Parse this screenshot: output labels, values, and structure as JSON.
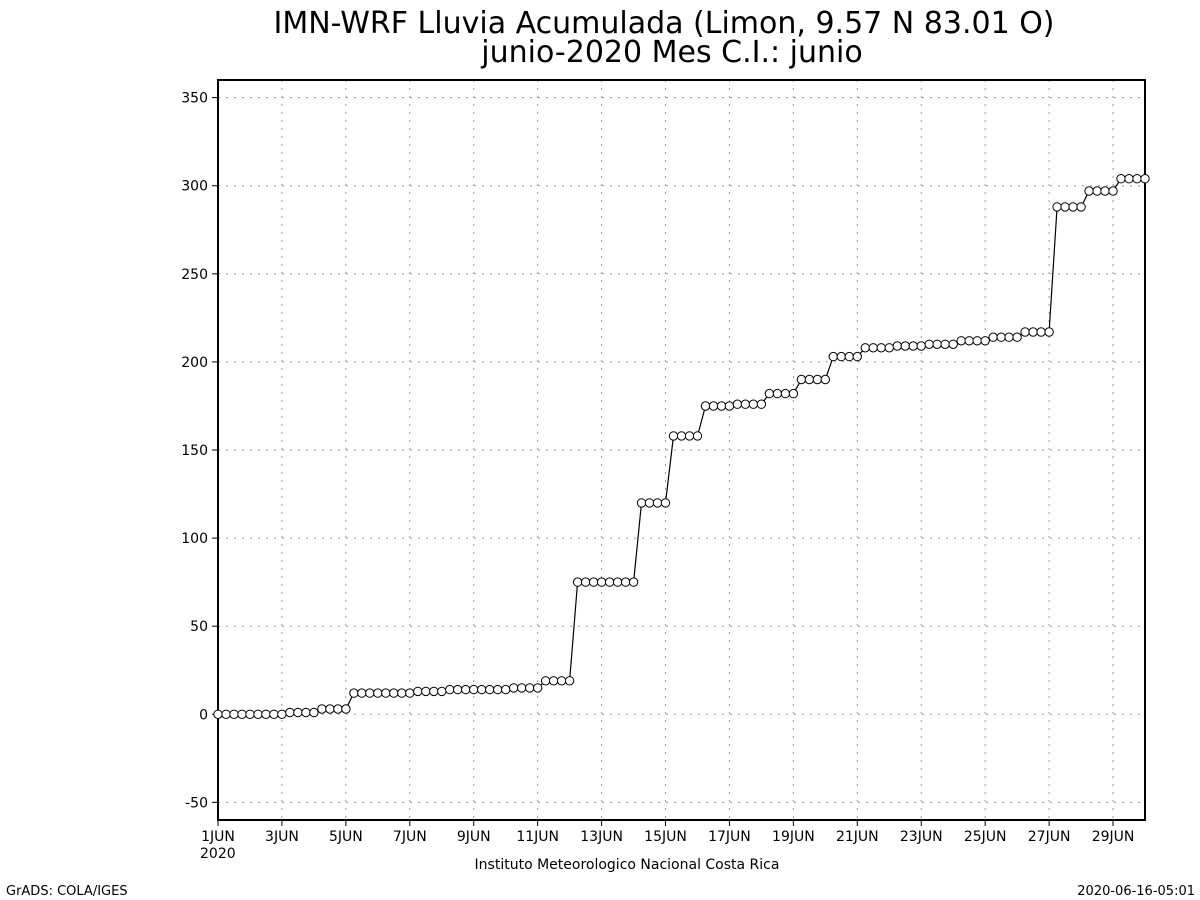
{
  "page": {
    "title_line1": "IMN-WRF  Lluvia Acumulada (Limon, 9.57  N 83.01  O)",
    "title_line2": "junio-2020 Mes C.I.: junio",
    "institution": "Instituto Meteorologico Nacional Costa Rica",
    "footer_left": "GrADS: COLA/IGES",
    "footer_right": "2020-06-16-05:01",
    "year_label": "2020"
  },
  "chart_data": {
    "type": "line",
    "title": "IMN-WRF  Lluvia Acumulada (Limon, 9.57  N 83.01  O)",
    "subtitle": "junio-2020 Mes C.I.: junio",
    "xlabel": "",
    "ylabel": "",
    "x_unit": "days since 1JUN 2020",
    "xlim": [
      0,
      29
    ],
    "ylim": [
      -60,
      360
    ],
    "yticks": [
      -50,
      0,
      50,
      100,
      150,
      200,
      250,
      300,
      350
    ],
    "xticks": [
      {
        "x": 0,
        "label": "1JUN"
      },
      {
        "x": 2,
        "label": "3JUN"
      },
      {
        "x": 4,
        "label": "5JUN"
      },
      {
        "x": 6,
        "label": "7JUN"
      },
      {
        "x": 8,
        "label": "9JUN"
      },
      {
        "x": 10,
        "label": "11JUN"
      },
      {
        "x": 12,
        "label": "13JUN"
      },
      {
        "x": 14,
        "label": "15JUN"
      },
      {
        "x": 16,
        "label": "17JUN"
      },
      {
        "x": 18,
        "label": "19JUN"
      },
      {
        "x": 20,
        "label": "21JUN"
      },
      {
        "x": 22,
        "label": "23JUN"
      },
      {
        "x": 24,
        "label": "25JUN"
      },
      {
        "x": 26,
        "label": "27JUN"
      },
      {
        "x": 28,
        "label": "29JUN"
      }
    ],
    "grid": true,
    "line_color": "#000000",
    "marker": "open-circle",
    "series": [
      {
        "name": "",
        "x": [
          0,
          0.25,
          0.5,
          0.75,
          1,
          1.25,
          1.5,
          1.75,
          2,
          2.25,
          2.5,
          2.75,
          3,
          3.25,
          3.5,
          3.75,
          4,
          4.25,
          4.5,
          4.75,
          5,
          5.25,
          5.5,
          5.75,
          6,
          6.25,
          6.5,
          6.75,
          7,
          7.25,
          7.5,
          7.75,
          8,
          8.25,
          8.5,
          8.75,
          9,
          9.25,
          9.5,
          9.75,
          10,
          10.25,
          10.5,
          10.75,
          11,
          11.25,
          11.5,
          11.75,
          12,
          12.25,
          12.5,
          12.75,
          13,
          13.25,
          13.5,
          13.75,
          14,
          14.25,
          14.5,
          14.75,
          15,
          15.25,
          15.5,
          15.75,
          16,
          16.25,
          16.5,
          16.75,
          17,
          17.25,
          17.5,
          17.75,
          18,
          18.25,
          18.5,
          18.75,
          19,
          19.25,
          19.5,
          19.75,
          20,
          20.25,
          20.5,
          20.75,
          21,
          21.25,
          21.5,
          21.75,
          22,
          22.25,
          22.5,
          22.75,
          23,
          23.25,
          23.5,
          23.75,
          24,
          24.25,
          24.5,
          24.75,
          25,
          25.25,
          25.5,
          25.75,
          26,
          26.25,
          26.5,
          26.75,
          27,
          27.25,
          27.5,
          27.75,
          28,
          28.25,
          28.5,
          28.75,
          29
        ],
        "y": [
          0,
          0,
          0,
          0,
          0,
          0,
          0,
          0,
          0,
          1,
          1,
          1,
          1,
          3,
          3,
          3,
          3,
          12,
          12,
          12,
          12,
          12,
          12,
          12,
          12,
          13,
          13,
          13,
          13,
          14,
          14,
          14,
          14,
          14,
          14,
          14,
          14,
          15,
          15,
          15,
          15,
          19,
          19,
          19,
          19,
          75,
          75,
          75,
          75,
          75,
          75,
          75,
          75,
          120,
          120,
          120,
          120,
          158,
          158,
          158,
          158,
          175,
          175,
          175,
          175,
          176,
          176,
          176,
          176,
          182,
          182,
          182,
          182,
          190,
          190,
          190,
          190,
          203,
          203,
          203,
          203,
          208,
          208,
          208,
          208,
          209,
          209,
          209,
          209,
          210,
          210,
          210,
          210,
          212,
          212,
          212,
          212,
          214,
          214,
          214,
          214,
          217,
          217,
          217,
          217,
          288,
          288,
          288,
          288,
          297,
          297,
          297,
          297,
          304,
          304,
          304,
          304
        ]
      }
    ]
  }
}
